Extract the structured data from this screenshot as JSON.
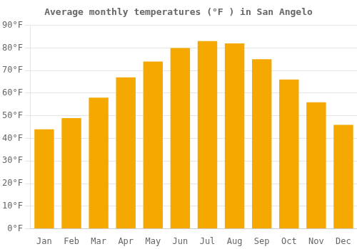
{
  "chart_data": {
    "type": "bar",
    "title": "Average monthly temperatures (°F ) in San Angelo",
    "categories": [
      "Jan",
      "Feb",
      "Mar",
      "Apr",
      "May",
      "Jun",
      "Jul",
      "Aug",
      "Sep",
      "Oct",
      "Nov",
      "Dec"
    ],
    "values": [
      44,
      49,
      58,
      67,
      74,
      80,
      83,
      82,
      75,
      66,
      56,
      46
    ],
    "color": "#F5A800",
    "ylim": [
      0,
      90
    ],
    "yticks": [
      {
        "value": 0,
        "label": "0°F"
      },
      {
        "value": 10,
        "label": "10°F"
      },
      {
        "value": 20,
        "label": "20°F"
      },
      {
        "value": 30,
        "label": "30°F"
      },
      {
        "value": 40,
        "label": "40°F"
      },
      {
        "value": 50,
        "label": "50°F"
      },
      {
        "value": 60,
        "label": "60°F"
      },
      {
        "value": 70,
        "label": "70°F"
      },
      {
        "value": 80,
        "label": "80°F"
      },
      {
        "value": 90,
        "label": "90°F"
      }
    ],
    "grid": true
  }
}
